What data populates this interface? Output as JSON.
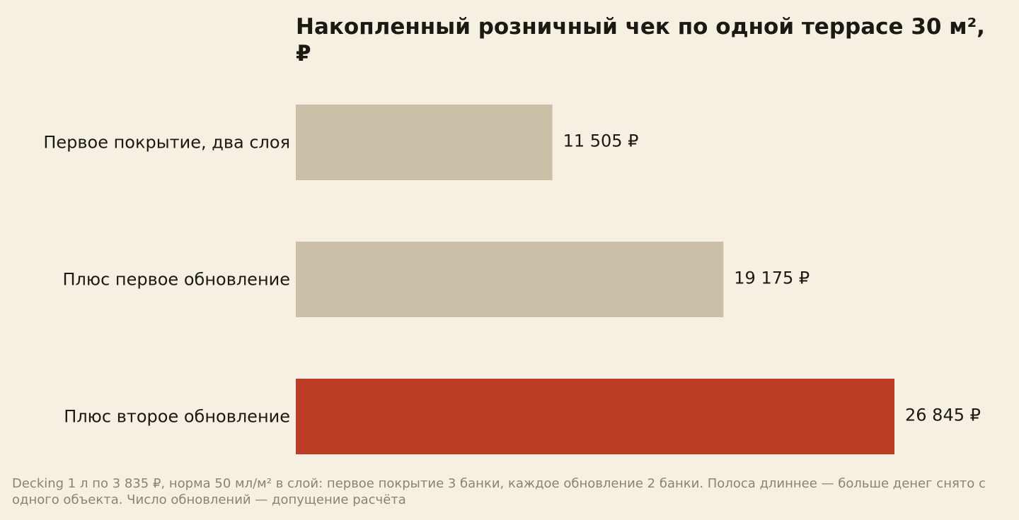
{
  "chart_data": {
    "type": "bar",
    "orientation": "horizontal",
    "title": "Накопленный розничный чек по одной террасе 30 м², ₽",
    "categories": [
      "Первое покрытие, два слоя",
      "Плюс первое обновление",
      "Плюс второе обновление"
    ],
    "values": [
      11505,
      19175,
      26845
    ],
    "value_labels": [
      "11 505 ₽",
      "19 175 ₽",
      "26 845 ₽"
    ],
    "bar_colors": [
      "#c9c0a7",
      "#c9c0a7",
      "#bd3d27"
    ],
    "xlim": [
      0,
      26845
    ],
    "grid": false,
    "legend": "none",
    "footnote": "Decking 1 л по 3 835 ₽, норма 50 мл/м² в слой: первое покрытие 3 банки, каждое обновление 2 банки. Полоса длиннее — больше денег снято с одного объекта. Число обновлений — допущение расчёта"
  }
}
